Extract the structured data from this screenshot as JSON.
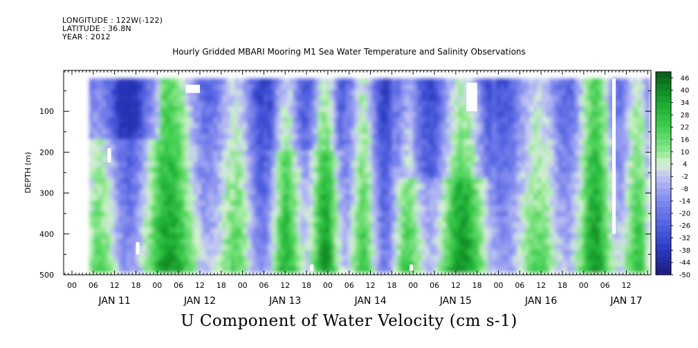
{
  "header": {
    "longitude": "LONGITUDE : 122W(-122)",
    "latitude": "LATITUDE : 36.8N",
    "year": "YEAR : 2012"
  },
  "title": "Hourly Gridded MBARI Mooring M1 Sea Water Temperature and Salinity Observations",
  "variable_title": "U Component of Water Velocity (cm s-1)",
  "chart_data": {
    "type": "heatmap",
    "title": "Hourly Gridded MBARI Mooring M1 Sea Water Temperature and Salinity Observations",
    "variable": "U Component of Water Velocity (cm s-1)",
    "xlabel": "",
    "ylabel": "DEPTH (m)",
    "x_hour_ticks": [
      "00",
      "06",
      "12",
      "18",
      "00",
      "06",
      "12",
      "18",
      "00",
      "06",
      "12",
      "18",
      "00",
      "06",
      "12",
      "18",
      "00",
      "06",
      "12",
      "18",
      "00",
      "06",
      "12",
      "18",
      "00",
      "06",
      "12"
    ],
    "x_day_labels": [
      "JAN 11",
      "JAN 12",
      "JAN 13",
      "JAN 14",
      "JAN 15",
      "JAN 16",
      "JAN 17"
    ],
    "x_range_hours": [
      -6,
      16
    ],
    "y_ticks": [
      100,
      200,
      300,
      400,
      500
    ],
    "y_range": [
      500,
      0
    ],
    "data_depth_range": [
      20,
      490
    ],
    "colorbar": {
      "labels": [
        "46",
        "40",
        "34",
        "28",
        "22",
        "16",
        "10",
        "4",
        "-2",
        "-8",
        "-14",
        "-20",
        "-26",
        "-32",
        "-38",
        "-44",
        "-50"
      ],
      "range": [
        -50,
        49
      ],
      "step": 3
    },
    "missing_regions": [
      {
        "day": "JAN 11",
        "hour_range": [
          10,
          11
        ],
        "depth_range": [
          190,
          225
        ]
      },
      {
        "day": "JAN 11",
        "hour_range": [
          18,
          19
        ],
        "depth_range": [
          420,
          450
        ]
      },
      {
        "day": "JAN 12",
        "hour_range": [
          8,
          12
        ],
        "depth_range": [
          35,
          55
        ]
      },
      {
        "day": "JAN 14",
        "hour_range": [
          -5,
          -4
        ],
        "depth_range": [
          475,
          490
        ]
      },
      {
        "day": "JAN 15",
        "hour_range": [
          -1,
          0
        ],
        "depth_range": [
          475,
          490
        ]
      },
      {
        "day": "JAN 16",
        "hour_range": [
          -9,
          -6
        ],
        "depth_range": [
          30,
          100
        ]
      },
      {
        "day": "JAN 17",
        "hour_range": [
          8,
          9
        ],
        "depth_range": [
          20,
          400
        ]
      }
    ]
  },
  "palette": {
    "strong_negative": "#1a2a9a",
    "negative": "#5060e0",
    "weak_negative": "#a0a8f0",
    "near_zero": "#c8f0c8",
    "positive": "#50d060",
    "strong_positive": "#0a8a20",
    "max_positive": "#0b5a1a"
  }
}
